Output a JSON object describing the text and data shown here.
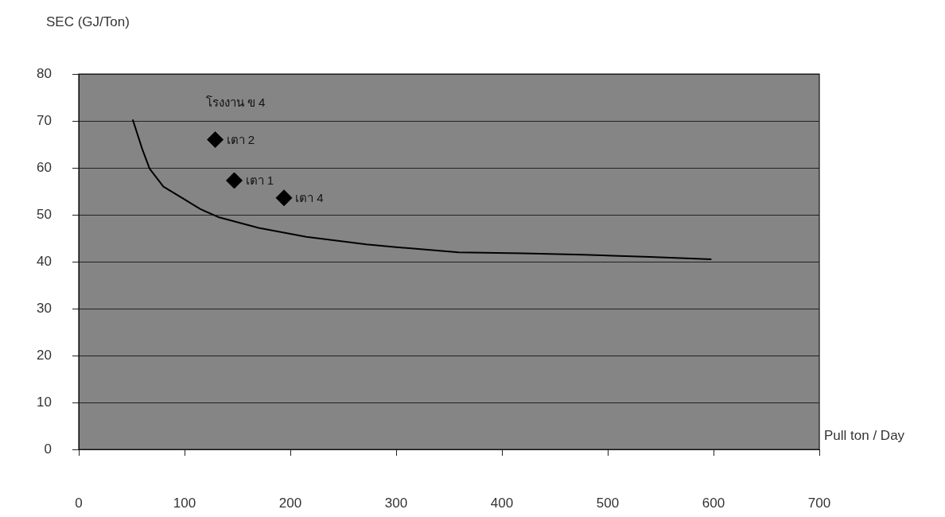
{
  "chart_data": {
    "type": "scatter",
    "ylabel": "SEC (GJ/Ton)",
    "xlabel": "Pull ton / Day",
    "annotations": [
      "โรงงาน ข 4"
    ],
    "xlim": [
      0,
      700
    ],
    "xticks": [
      0,
      100,
      200,
      300,
      400,
      500,
      600,
      700
    ],
    "ylim": [
      0,
      80
    ],
    "yticks": [
      0,
      10,
      20,
      30,
      40,
      50,
      60,
      70,
      80
    ],
    "grid": "y",
    "legend": false,
    "marker": "diamond",
    "series": [
      {
        "type": "line",
        "color": "#000000",
        "marker": "none",
        "x": [
          51,
          60,
          67,
          80,
          99,
          115,
          132,
          170,
          215,
          272,
          300,
          359,
          420,
          477,
          540,
          598
        ],
        "values": [
          70.3,
          64,
          59.8,
          56,
          53.4,
          51.2,
          49.5,
          47.2,
          45.3,
          43.7,
          43.1,
          42,
          41.8,
          41.5,
          41,
          40.5
        ]
      },
      {
        "name": "เตา 2",
        "color": "#000000",
        "x": [
          129
        ],
        "values": [
          66
        ]
      },
      {
        "name": "เตา 1",
        "color": "#000000",
        "x": [
          147
        ],
        "values": [
          57.3
        ]
      },
      {
        "name": "เตา 4",
        "color": "#000000",
        "x": [
          194
        ],
        "values": [
          53.6
        ]
      }
    ]
  }
}
